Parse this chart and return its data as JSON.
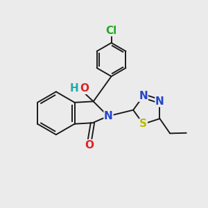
{
  "background_color": "#ebebeb",
  "bond_color": "#1a1a1a",
  "atoms": {
    "Cl": {
      "color": "#22aa22",
      "fontsize": 11
    },
    "O_carbonyl": {
      "color": "#dd2222",
      "fontsize": 11
    },
    "O_hydroxyl": {
      "color": "#dd2222",
      "fontsize": 11
    },
    "H": {
      "color": "#22aaaa",
      "fontsize": 11
    },
    "N": {
      "color": "#2244cc",
      "fontsize": 11
    },
    "S": {
      "color": "#bbbb00",
      "fontsize": 11
    }
  },
  "figsize": [
    3.0,
    3.0
  ],
  "dpi": 100
}
